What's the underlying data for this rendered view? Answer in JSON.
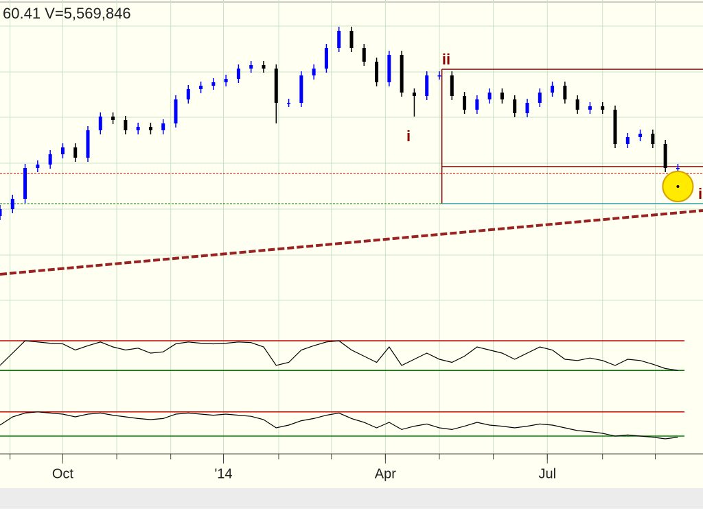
{
  "chart_data": {
    "type": "candlestick",
    "title": "60.41   V=5,569,846",
    "x": [
      0,
      5,
      10,
      15,
      20,
      25,
      30,
      35,
      40,
      45,
      50,
      55,
      60,
      65,
      70,
      75,
      80,
      85,
      90,
      95,
      100,
      105,
      110,
      115,
      120,
      125,
      130,
      135,
      140,
      145,
      150,
      155,
      160,
      165,
      170,
      175,
      180,
      185,
      190,
      195,
      200,
      205,
      210,
      215,
      220,
      225,
      230,
      235,
      240,
      245,
      250,
      255,
      260,
      265,
      270
    ],
    "open": [
      145,
      155,
      170,
      215,
      220,
      235,
      245,
      230,
      270,
      290,
      285,
      270,
      275,
      270,
      280,
      315,
      330,
      335,
      340,
      345,
      360,
      365,
      360,
      310,
      310,
      350,
      360,
      390,
      415,
      390,
      370,
      340,
      380,
      325,
      320,
      350,
      350,
      320,
      300,
      315,
      325,
      315,
      295,
      310,
      325,
      335,
      315,
      300,
      305,
      300,
      250,
      260,
      265,
      250,
      215
    ],
    "high": [
      161,
      176,
      221,
      226,
      241,
      251,
      251,
      276,
      296,
      296,
      291,
      281,
      281,
      286,
      321,
      336,
      341,
      346,
      351,
      366,
      371,
      371,
      366,
      316,
      356,
      366,
      396,
      421,
      421,
      396,
      376,
      386,
      386,
      331,
      356,
      356,
      356,
      326,
      321,
      331,
      331,
      321,
      316,
      331,
      341,
      341,
      321,
      311,
      311,
      306,
      266,
      271,
      271,
      256,
      221
    ],
    "low": [
      139,
      149,
      164,
      209,
      214,
      229,
      224,
      224,
      264,
      279,
      264,
      264,
      264,
      264,
      274,
      309,
      324,
      329,
      334,
      339,
      354,
      354,
      280,
      304,
      304,
      344,
      354,
      384,
      384,
      364,
      334,
      334,
      319,
      290,
      314,
      344,
      314,
      294,
      294,
      309,
      309,
      289,
      289,
      304,
      319,
      309,
      294,
      294,
      294,
      244,
      244,
      254,
      244,
      209,
      209
    ],
    "close": [
      155,
      170,
      215,
      220,
      235,
      245,
      230,
      270,
      290,
      285,
      270,
      275,
      270,
      280,
      315,
      330,
      335,
      340,
      345,
      360,
      365,
      360,
      310,
      310,
      350,
      360,
      390,
      415,
      390,
      370,
      340,
      380,
      325,
      320,
      350,
      350,
      320,
      300,
      315,
      325,
      315,
      295,
      310,
      325,
      335,
      315,
      300,
      305,
      300,
      250,
      260,
      265,
      250,
      215,
      215
    ],
    "up_color": "#0000ff",
    "down_color": "#000000",
    "xlim": [
      0,
      280
    ],
    "ylim": [
      0,
      460
    ],
    "xticks": [
      {
        "value": 25,
        "label": "Oct"
      },
      {
        "value": 89,
        "label": "'14"
      },
      {
        "value": 153.5,
        "label": "Apr"
      },
      {
        "value": 218,
        "label": "Jul"
      }
    ],
    "x_grid": [
      4,
      25,
      46.5,
      68,
      89,
      111,
      132,
      153.5,
      175,
      196.5,
      218,
      240,
      261
    ],
    "y_grid": [
      422,
      355,
      289,
      222,
      155,
      88,
      22
    ],
    "grid_color": "#c9e3c5",
    "levels": [
      {
        "value": 207,
        "color": "#c00000"
      },
      {
        "value": 163,
        "color": "#008000"
      }
    ],
    "box": {
      "x0": 176,
      "x1": 280,
      "top": 359,
      "mid": 217,
      "bottom": 163,
      "color": "#800000",
      "base_color": "#2aa0a0"
    },
    "trendline": {
      "x": [
        0,
        280
      ],
      "y": [
        60,
        153
      ],
      "color": "#992222"
    },
    "marker": {
      "x": 270,
      "y": 188,
      "color": "#ffea00"
    },
    "annotations": [
      "ii",
      "i",
      "i"
    ],
    "indicators": [
      {
        "ylim": [
          0,
          100
        ],
        "levels": [
          70,
          22
        ],
        "level_colors": [
          "#c00000",
          "#008000"
        ],
        "color": "#000000",
        "values": [
          30,
          50,
          70,
          68,
          66,
          65,
          55,
          62,
          68,
          60,
          55,
          58,
          50,
          52,
          65,
          68,
          66,
          65,
          66,
          68,
          67,
          60,
          30,
          35,
          55,
          62,
          68,
          70,
          55,
          45,
          35,
          60,
          30,
          40,
          50,
          40,
          35,
          45,
          60,
          55,
          50,
          40,
          50,
          60,
          55,
          40,
          38,
          42,
          38,
          30,
          40,
          38,
          32,
          25,
          22
        ]
      },
      {
        "ylim": [
          0,
          100
        ],
        "levels": [
          74,
          30
        ],
        "level_colors": [
          "#c00000",
          "#008000"
        ],
        "color": "#000000",
        "values": [
          50,
          65,
          72,
          74,
          72,
          70,
          65,
          70,
          72,
          68,
          65,
          62,
          60,
          62,
          70,
          72,
          70,
          68,
          70,
          68,
          66,
          60,
          45,
          50,
          58,
          62,
          68,
          72,
          62,
          55,
          45,
          55,
          42,
          48,
          52,
          45,
          42,
          48,
          55,
          50,
          48,
          45,
          48,
          52,
          50,
          45,
          40,
          38,
          35,
          30,
          32,
          30,
          28,
          25,
          28
        ]
      }
    ]
  }
}
